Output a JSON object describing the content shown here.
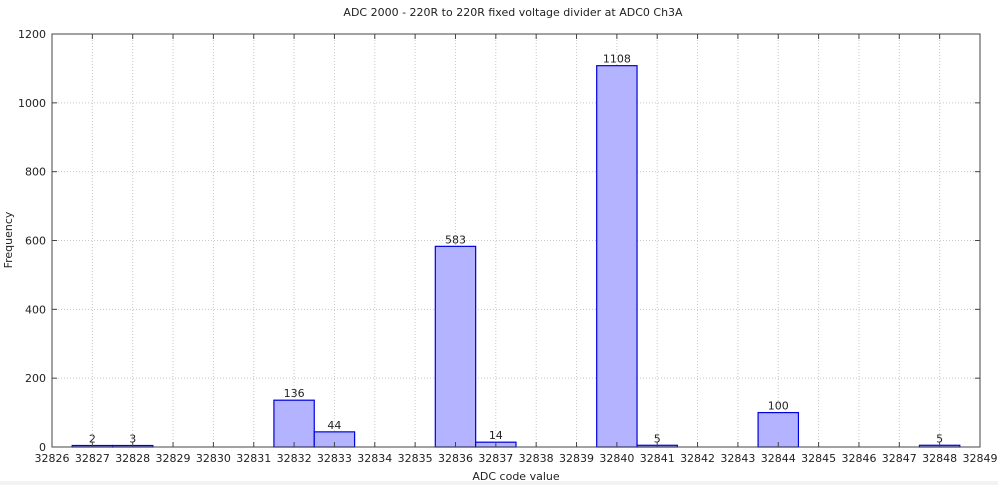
{
  "chart_data": {
    "type": "bar",
    "title": "ADC 2000 - 220R to 220R fixed voltage divider at ADC0 Ch3A",
    "xlabel": "ADC code value",
    "ylabel": "Frequency",
    "xlim": [
      32826,
      32849
    ],
    "ylim": [
      0,
      1200
    ],
    "x_ticks": [
      32826,
      32827,
      32828,
      32829,
      32830,
      32831,
      32832,
      32833,
      32834,
      32835,
      32836,
      32837,
      32838,
      32839,
      32840,
      32841,
      32842,
      32843,
      32844,
      32845,
      32846,
      32847,
      32848,
      32849
    ],
    "y_ticks": [
      0,
      200,
      400,
      600,
      800,
      1000,
      1200
    ],
    "grid": true,
    "legend": null,
    "categories": [
      32827,
      32828,
      32832,
      32833,
      32836,
      32837,
      32840,
      32841,
      32844,
      32848
    ],
    "values": [
      2,
      3,
      136,
      44,
      583,
      14,
      1108,
      5,
      100,
      5
    ],
    "bar_fill": "#b3b3ff",
    "bar_edge": "#0000e0"
  }
}
